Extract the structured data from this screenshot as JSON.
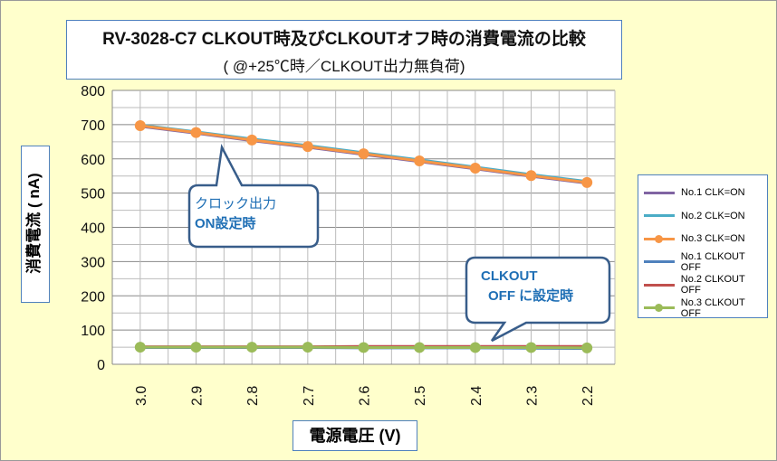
{
  "chart_data": {
    "type": "line",
    "title": "RV-3028-C7 CLKOUT時及びCLKOUTオフ時の消費電流の比較",
    "subtitle": "( @+25℃時／CLKOUT出力無負荷)",
    "xlabel": "電源電圧 (V)",
    "ylabel": "消費電流 ( nA)",
    "categories": [
      "3.0",
      "2.9",
      "2.8",
      "2.7",
      "2.6",
      "2.5",
      "2.4",
      "2.3",
      "2.2"
    ],
    "ylim": [
      0,
      800
    ],
    "yticks": [
      "0",
      "100",
      "200",
      "300",
      "400",
      "500",
      "600",
      "700",
      "800"
    ],
    "grid": true,
    "legend_position": "right",
    "series": [
      {
        "name": "No.1 CLK=ON",
        "color": "#8064A2",
        "marker": false,
        "values": [
          695,
          675,
          653,
          634,
          613,
          592,
          571,
          549,
          529
        ]
      },
      {
        "name": "No.2 CLK=ON",
        "color": "#4BACC6",
        "marker": false,
        "values": [
          699,
          679,
          658,
          639,
          618,
          597,
          576,
          554,
          534
        ]
      },
      {
        "name": "No.3 CLK=ON",
        "color": "#F79646",
        "marker": true,
        "values": [
          697,
          677,
          655,
          636,
          615,
          594,
          573,
          551,
          531
        ]
      },
      {
        "name": "No.1 CLKOUT OFF",
        "color": "#4F81BD",
        "marker": false,
        "values": [
          49,
          49,
          49,
          49,
          48,
          48,
          48,
          47,
          46
        ]
      },
      {
        "name": "No.2 CLKOUT OFF",
        "color": "#C0504D",
        "marker": false,
        "values": [
          51,
          51,
          51,
          51,
          52,
          52,
          52,
          52,
          52
        ]
      },
      {
        "name": "No.3 CLKOUT OFF",
        "color": "#9BBB59",
        "marker": true,
        "values": [
          50,
          50,
          50,
          50,
          49,
          49,
          49,
          49,
          48
        ]
      }
    ],
    "annotations": [
      {
        "line1": "クロック出力",
        "line2": "ON設定時"
      },
      {
        "line1": "CLKOUT",
        "line2": "OFF に設定時"
      }
    ]
  }
}
